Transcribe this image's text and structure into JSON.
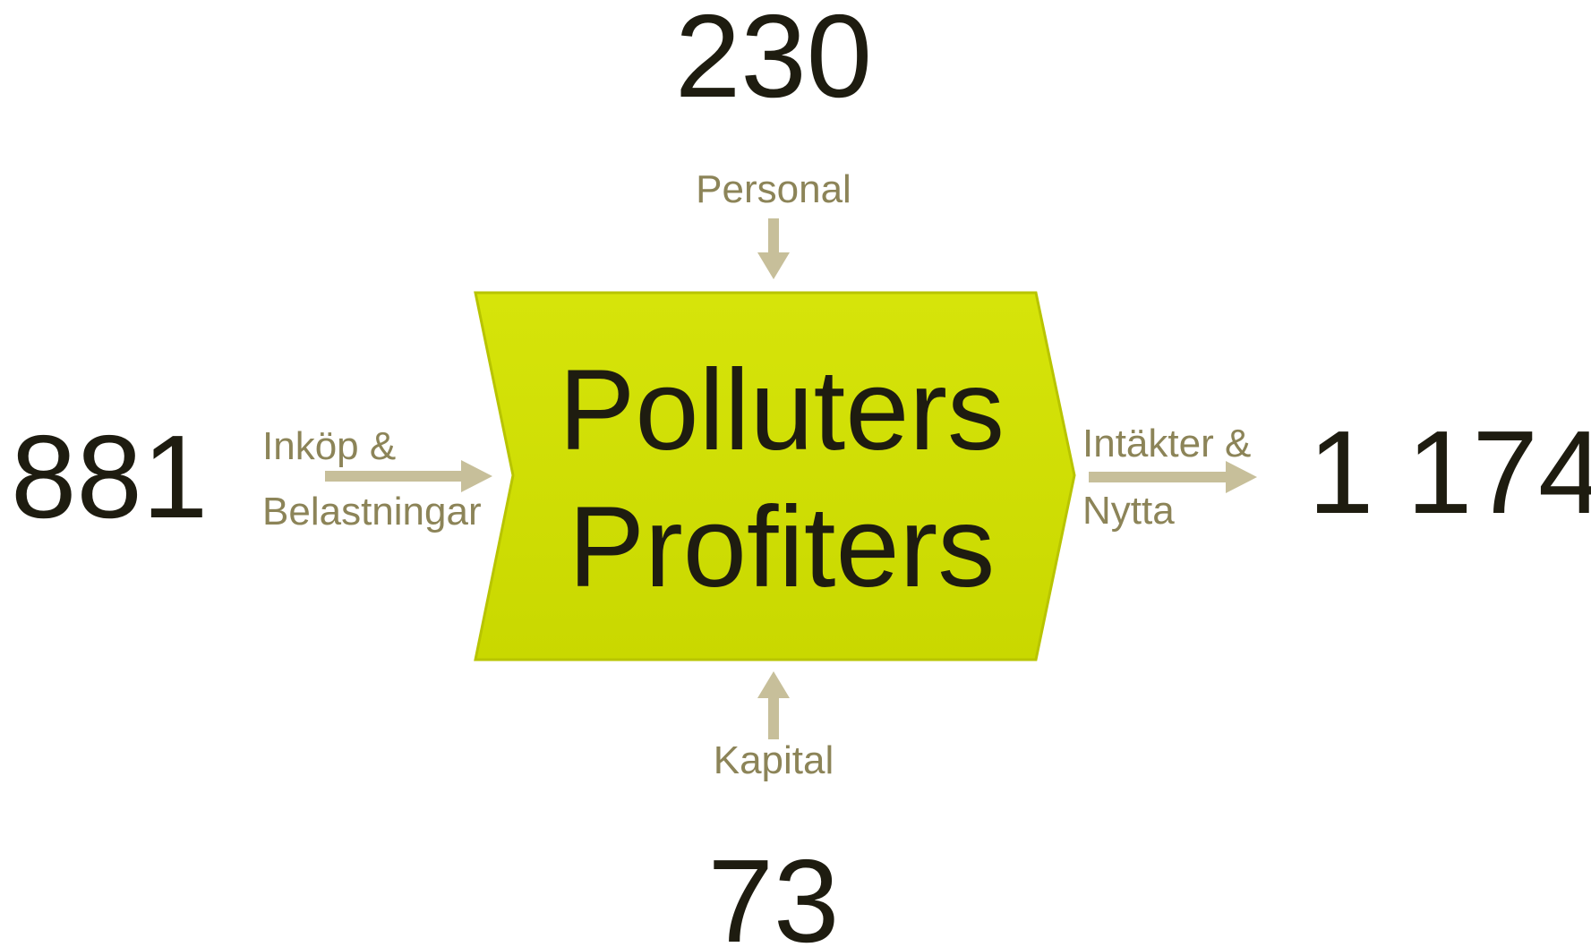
{
  "center": {
    "lines": [
      "Polluters",
      "Profiters"
    ]
  },
  "top": {
    "value": "230",
    "label": "Personal"
  },
  "left": {
    "value": "881",
    "label": [
      "Inköp &",
      "Belastningar"
    ]
  },
  "right": {
    "value": "1 174",
    "label": [
      "Intäkter &",
      "Nytta"
    ]
  },
  "bottom": {
    "value": "73",
    "label": "Kapital"
  }
}
